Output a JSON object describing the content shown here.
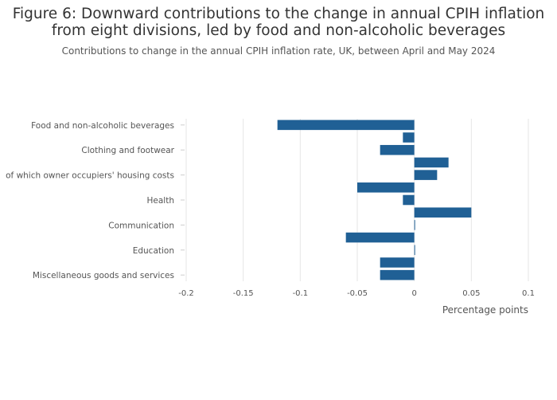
{
  "chart_data": {
    "type": "bar",
    "orientation": "horizontal",
    "title": "Figure 6: Downward contributions to the change in annual CPIH inflation from eight divisions, led by food and non-alcoholic beverages",
    "title_lines": [
      "Figure 6: Downward contributions to the change in annual CPIH inflation",
      "from eight divisions, led by food and non-alcoholic beverages"
    ],
    "subtitle": "Contributions to change in the annual CPIH inflation rate, UK, between April and May 2024",
    "xlabel": "Percentage points",
    "ylabel": "",
    "xlim": [
      -0.2,
      0.1
    ],
    "xticks": [
      -0.2,
      -0.15,
      -0.1,
      -0.05,
      0,
      0.05,
      0.1
    ],
    "xtick_labels": [
      "-0.2",
      "-0.15",
      "-0.1",
      "-0.05",
      "0",
      "0.05",
      "0.1"
    ],
    "grid": true,
    "bar_color": "#206095",
    "categories": [
      {
        "label": "Food and non-alcoholic beverages",
        "value": -0.12,
        "show_label": true
      },
      {
        "label": "",
        "value": -0.01,
        "show_label": false
      },
      {
        "label": "Clothing and footwear",
        "value": -0.03,
        "show_label": true
      },
      {
        "label": "",
        "value": 0.03,
        "show_label": false
      },
      {
        "label": "of which owner occupiers' housing costs",
        "value": 0.02,
        "show_label": true
      },
      {
        "label": "",
        "value": -0.05,
        "show_label": false
      },
      {
        "label": "Health",
        "value": -0.01,
        "show_label": true
      },
      {
        "label": "",
        "value": 0.05,
        "show_label": false
      },
      {
        "label": "Communication",
        "value": 0.0,
        "show_label": true
      },
      {
        "label": "",
        "value": -0.06,
        "show_label": false
      },
      {
        "label": "Education",
        "value": 0.0,
        "show_label": true
      },
      {
        "label": "",
        "value": -0.03,
        "show_label": false
      },
      {
        "label": "Miscellaneous goods and services",
        "value": -0.03,
        "show_label": true
      }
    ]
  }
}
